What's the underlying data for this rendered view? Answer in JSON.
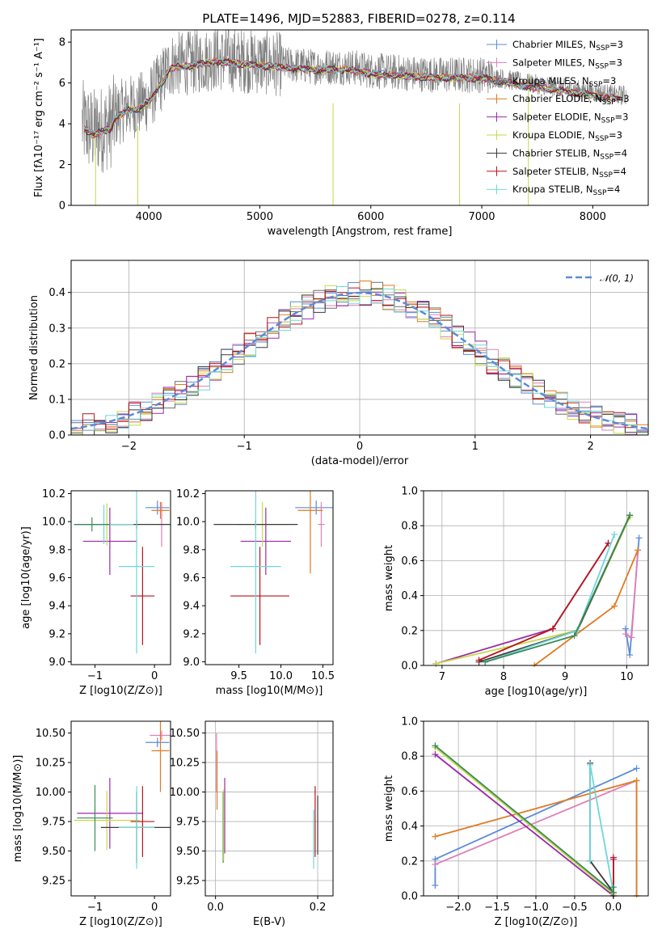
{
  "title": "PLATE=1496, MJD=52883, FIBERID=0278, z=0.114",
  "colors": {
    "chabrier_miles": "#5b8bd8",
    "salpeter_miles": "#e07fb8",
    "kroupa_miles": "#6e6e6e",
    "chabrier_elodie": "#e07a22",
    "salpeter_elodie": "#9a2aa8",
    "kroupa_elodie": "#c5d94a",
    "chabrier_stelib": "#3a3a3a",
    "salpeter_stelib": "#b8141c",
    "kroupa_stelib": "#6fd6d8",
    "data": "#808080",
    "normal": "#5b8bd8"
  },
  "legend_spectrum": [
    {
      "name": "Chabrier MILES, N",
      "sub": "SSP",
      "tail": "=3",
      "color": "#5b8bd8"
    },
    {
      "name": "Salpeter MILES, N",
      "sub": "SSP",
      "tail": "=3",
      "color": "#e07fb8"
    },
    {
      "name": "Kroupa MILES, N",
      "sub": "SSP",
      "tail": "=3",
      "color": "#6e6e6e"
    },
    {
      "name": "Chabrier ELODIE, N",
      "sub": "SSP",
      "tail": "=3",
      "color": "#e07a22"
    },
    {
      "name": "Salpeter ELODIE, N",
      "sub": "SSP",
      "tail": "=3",
      "color": "#9a2aa8"
    },
    {
      "name": "Kroupa ELODIE, N",
      "sub": "SSP",
      "tail": "=3",
      "color": "#c5d94a"
    },
    {
      "name": "Chabrier STELIB, N",
      "sub": "SSP",
      "tail": "=4",
      "color": "#3a3a3a"
    },
    {
      "name": "Salpeter STELIB, N",
      "sub": "SSP",
      "tail": "=4",
      "color": "#b8141c"
    },
    {
      "name": "Kroupa STELIB, N",
      "sub": "SSP",
      "tail": "=4",
      "color": "#6fd6d8"
    }
  ],
  "chart_data": [
    {
      "type": "line",
      "xlabel": "wavelength [Angstrom, rest frame]",
      "ylabel": "Flux [fλ10⁻¹⁷ erg cm⁻² s⁻¹ A⁻¹]",
      "xlim": [
        3300,
        8500
      ],
      "ylim": [
        0,
        8.6
      ],
      "xticks": [
        4000,
        5000,
        6000,
        7000,
        8000
      ],
      "yticks": [
        0,
        2,
        4,
        6,
        8
      ],
      "continuum_x": [
        3400,
        3500,
        3650,
        3700,
        3800,
        3900,
        4000,
        4100,
        4200,
        4400,
        4600,
        4800,
        5000,
        5200,
        5500,
        5800,
        6000,
        6300,
        6600,
        7000,
        7400,
        7800,
        8200
      ],
      "continuum_y": [
        4.0,
        3.6,
        3.9,
        4.4,
        4.8,
        4.9,
        5.2,
        6.0,
        6.9,
        7.0,
        7.2,
        7.1,
        7.0,
        6.9,
        6.8,
        6.8,
        6.6,
        6.5,
        6.4,
        6.4,
        6.0,
        5.7,
        5.4
      ]
    },
    {
      "type": "bar",
      "xlabel": "(data-model)/error",
      "ylabel": "Normed distribution",
      "xlim": [
        -2.5,
        2.5
      ],
      "ylim": [
        0,
        0.49
      ],
      "xticks": [
        -2,
        -1,
        0,
        1,
        2
      ],
      "yticks": [
        0.0,
        0.1,
        0.2,
        0.3,
        0.4
      ],
      "grid": true,
      "legend": {
        "label": "N(0,1)",
        "position": "top-right"
      },
      "bin_width": 0.1
    },
    {
      "type": "scatter",
      "xlabel": "Z [log10(Z/Z⊙)]",
      "ylabel": "age  [log10(age/yr)]",
      "xlim": [
        -1.4,
        0.27
      ],
      "ylim": [
        8.98,
        10.22
      ],
      "xticks": [
        -1,
        0
      ],
      "yticks": [
        9.0,
        9.2,
        9.4,
        9.6,
        9.8,
        10.0,
        10.2
      ],
      "points": [
        {
          "x": 0.05,
          "y": 10.1,
          "ex": 0.2,
          "ey": 0.05,
          "color": "#5b8bd8"
        },
        {
          "x": 0.12,
          "y": 9.98,
          "ex": 0.05,
          "ey": 0.16,
          "color": "#e07fb8"
        },
        {
          "x": 0.1,
          "y": 10.08,
          "ex": 0.15,
          "ey": 0.06,
          "color": "#e07a22"
        },
        {
          "x": -0.75,
          "y": 9.86,
          "ex": 0.45,
          "ey": 0.24,
          "color": "#9a2aa8"
        },
        {
          "x": -0.8,
          "y": 9.98,
          "ex": 0.55,
          "ey": 0.15,
          "color": "#c5d94a"
        },
        {
          "x": -0.3,
          "y": 9.98,
          "ex": 1.05,
          "ey": 0.03,
          "color": "#3a3a3a"
        },
        {
          "x": -0.2,
          "y": 9.47,
          "ex": 0.2,
          "ey": 0.35,
          "color": "#b8141c"
        },
        {
          "x": -0.3,
          "y": 9.68,
          "ex": 0.3,
          "ey": 0.62,
          "color": "#6fd6d8"
        },
        {
          "x": -0.85,
          "y": 9.98,
          "ex": 0.5,
          "ey": 0.14,
          "color": "#6fd6d8"
        },
        {
          "x": -1.05,
          "y": 9.98,
          "ex": 0.3,
          "ey": 0.05,
          "color": "#3a8a5a"
        }
      ]
    },
    {
      "type": "scatter",
      "xlabel": "mass [log10(M/M⊙)]",
      "ylabel": "",
      "xlim": [
        9.1,
        10.62
      ],
      "ylim": [
        8.98,
        10.22
      ],
      "xticks": [
        9.5,
        10.0,
        10.5
      ],
      "yticks": [
        9.0,
        9.2,
        9.4,
        9.6,
        9.8,
        10.0,
        10.2
      ],
      "points": [
        {
          "x": 10.42,
          "y": 10.1,
          "ex": 0.25,
          "ey": 0.05,
          "color": "#5b8bd8"
        },
        {
          "x": 10.48,
          "y": 9.98,
          "ex": 0.04,
          "ey": 0.16,
          "color": "#e07fb8"
        },
        {
          "x": 10.35,
          "y": 10.08,
          "ex": 0.15,
          "ey": 0.45,
          "color": "#e07a22"
        },
        {
          "x": 9.82,
          "y": 9.86,
          "ex": 0.3,
          "ey": 0.24,
          "color": "#9a2aa8"
        },
        {
          "x": 9.78,
          "y": 9.98,
          "ex": 0.3,
          "ey": 0.16,
          "color": "#c5d94a"
        },
        {
          "x": 9.7,
          "y": 9.98,
          "ex": 0.5,
          "ey": 0.03,
          "color": "#3a3a3a"
        },
        {
          "x": 9.75,
          "y": 9.47,
          "ex": 0.35,
          "ey": 0.35,
          "color": "#b8141c"
        },
        {
          "x": 9.7,
          "y": 9.68,
          "ex": 0.3,
          "ey": 0.62,
          "color": "#6fd6d8"
        }
      ]
    },
    {
      "type": "line",
      "xlabel": "age  [log10(age/yr)]",
      "ylabel": "mass weight",
      "xlim": [
        6.7,
        10.35
      ],
      "ylim": [
        0,
        1
      ],
      "xticks": [
        7,
        8,
        9,
        10
      ],
      "yticks": [
        0.0,
        0.2,
        0.4,
        0.6,
        0.8,
        1.0
      ],
      "grid": true,
      "series": [
        {
          "color": "#5b8bd8",
          "x": [
            9.98,
            10.05,
            10.2
          ],
          "y": [
            0.21,
            0.06,
            0.73
          ]
        },
        {
          "color": "#e07fb8",
          "x": [
            9.98,
            10.08,
            10.18
          ],
          "y": [
            0.18,
            0.16,
            0.66
          ]
        },
        {
          "color": "#e07a22",
          "x": [
            8.5,
            9.8,
            10.18
          ],
          "y": [
            0.0,
            0.34,
            0.66
          ]
        },
        {
          "color": "#9a2aa8",
          "x": [
            6.9,
            8.8,
            9.7
          ],
          "y": [
            0.01,
            0.21,
            0.7
          ]
        },
        {
          "color": "#c5d94a",
          "x": [
            6.9,
            9.2,
            10.05
          ],
          "y": [
            0.01,
            0.2,
            0.85
          ]
        },
        {
          "color": "#3a3a3a",
          "x": [
            7.6,
            9.2,
            10.05
          ],
          "y": [
            0.02,
            0.2,
            0.86
          ]
        },
        {
          "color": "#b8141c",
          "x": [
            7.6,
            8.8,
            9.7
          ],
          "y": [
            0.03,
            0.21,
            0.7
          ]
        },
        {
          "color": "#6fd6d8",
          "x": [
            7.7,
            9.2,
            9.8
          ],
          "y": [
            0.02,
            0.2,
            0.75
          ]
        },
        {
          "color": "#3a8a5a",
          "x": [
            7.7,
            9.15,
            10.05
          ],
          "y": [
            0.02,
            0.17,
            0.86
          ]
        }
      ]
    },
    {
      "type": "scatter",
      "xlabel": "Z [log10(Z/Z⊙)]",
      "ylabel": "mass [log10(M/M⊙)]",
      "xlim": [
        -1.4,
        0.27
      ],
      "ylim": [
        9.12,
        10.6
      ],
      "xticks": [
        -1,
        0
      ],
      "yticks": [
        9.25,
        9.5,
        9.75,
        10.0,
        10.25,
        10.5
      ],
      "points": [
        {
          "x": 0.05,
          "y": 10.42,
          "ex": 0.2,
          "ey": 0.04,
          "color": "#5b8bd8"
        },
        {
          "x": 0.12,
          "y": 10.48,
          "ex": 0.2,
          "ey": 0.04,
          "color": "#e07fb8"
        },
        {
          "x": 0.1,
          "y": 10.35,
          "ex": 0.15,
          "ey": 0.35,
          "color": "#e07a22"
        },
        {
          "x": -0.75,
          "y": 9.82,
          "ex": 0.55,
          "ey": 0.3,
          "color": "#9a2aa8"
        },
        {
          "x": -0.8,
          "y": 9.76,
          "ex": 0.55,
          "ey": 0.25,
          "color": "#c5d94a"
        },
        {
          "x": -0.3,
          "y": 9.7,
          "ex": 0.6,
          "ey": 0.3,
          "color": "#3a3a3a"
        },
        {
          "x": -0.2,
          "y": 9.75,
          "ex": 0.2,
          "ey": 0.3,
          "color": "#b8141c"
        },
        {
          "x": -0.3,
          "y": 9.7,
          "ex": 0.3,
          "ey": 0.35,
          "color": "#6fd6d8"
        },
        {
          "x": -1.0,
          "y": 9.78,
          "ex": 0.3,
          "ey": 0.28,
          "color": "#3a8a5a"
        }
      ]
    },
    {
      "type": "scatter",
      "xlabel": "E(B-V)",
      "ylabel": "",
      "xlim": [
        -0.02,
        0.23
      ],
      "ylim": [
        9.12,
        10.6
      ],
      "xticks": [
        0.0,
        0.2
      ],
      "yticks": [
        9.25,
        9.5,
        9.75,
        10.0,
        10.25,
        10.5
      ],
      "grid": true,
      "points": [
        {
          "x": 0.002,
          "y": 10.25,
          "ex": 0.0,
          "ey": 0.25,
          "color": "#e07fb8"
        },
        {
          "x": 0.003,
          "y": 10.1,
          "ex": 0.0,
          "ey": 0.25,
          "color": "#e07a22"
        },
        {
          "x": 0.018,
          "y": 9.8,
          "ex": 0.0,
          "ey": 0.32,
          "color": "#9a2aa8"
        },
        {
          "x": 0.015,
          "y": 9.7,
          "ex": 0.0,
          "ey": 0.3,
          "color": "#3a8a5a"
        },
        {
          "x": 0.016,
          "y": 9.72,
          "ex": 0.0,
          "ey": 0.3,
          "color": "#c5d94a"
        },
        {
          "x": 0.195,
          "y": 9.75,
          "ex": 0.0,
          "ey": 0.3,
          "color": "#b8141c"
        },
        {
          "x": 0.2,
          "y": 9.72,
          "ex": 0.0,
          "ey": 0.25,
          "color": "#3a3a3a"
        },
        {
          "x": 0.192,
          "y": 9.6,
          "ex": 0.0,
          "ey": 0.25,
          "color": "#6fd6d8"
        }
      ]
    },
    {
      "type": "line",
      "xlabel": "Z [log10(Z/Z⊙)]",
      "ylabel": "mass weight",
      "xlim": [
        -2.45,
        0.45
      ],
      "ylim": [
        0,
        1
      ],
      "xticks": [
        -2.0,
        -1.5,
        -1.0,
        -0.5,
        0.0
      ],
      "yticks": [
        0.0,
        0.2,
        0.4,
        0.6,
        0.8,
        1.0
      ],
      "grid": true,
      "series": [
        {
          "color": "#5b8bd8",
          "x": [
            -2.3,
            -2.3,
            0.3
          ],
          "y": [
            0.06,
            0.21,
            0.73
          ]
        },
        {
          "color": "#e07fb8",
          "x": [
            -2.3,
            0.3,
            0.3
          ],
          "y": [
            0.18,
            0.66,
            0.0
          ]
        },
        {
          "color": "#e07a22",
          "x": [
            -2.3,
            0.3,
            0.3
          ],
          "y": [
            0.34,
            0.66,
            0.0
          ]
        },
        {
          "color": "#9a2aa8",
          "x": [
            -2.3,
            0.0,
            0.0
          ],
          "y": [
            0.81,
            0.0,
            0.21
          ]
        },
        {
          "color": "#c5d94a",
          "x": [
            -2.3,
            0.0
          ],
          "y": [
            0.85,
            0.01
          ]
        },
        {
          "color": "#3a3a3a",
          "x": [
            -0.3,
            -0.3,
            0.0
          ],
          "y": [
            0.76,
            0.2,
            0.02
          ]
        },
        {
          "color": "#b8141c",
          "x": [
            0.0,
            0.0
          ],
          "y": [
            0.22,
            0.0
          ]
        },
        {
          "color": "#6fd6d8",
          "x": [
            -0.3,
            -0.3,
            0.0
          ],
          "y": [
            0.2,
            0.75,
            0.02
          ]
        },
        {
          "color": "#3a8a5a",
          "x": [
            -2.3,
            0.0,
            0.0
          ],
          "y": [
            0.86,
            0.02,
            0.05
          ]
        }
      ]
    }
  ]
}
